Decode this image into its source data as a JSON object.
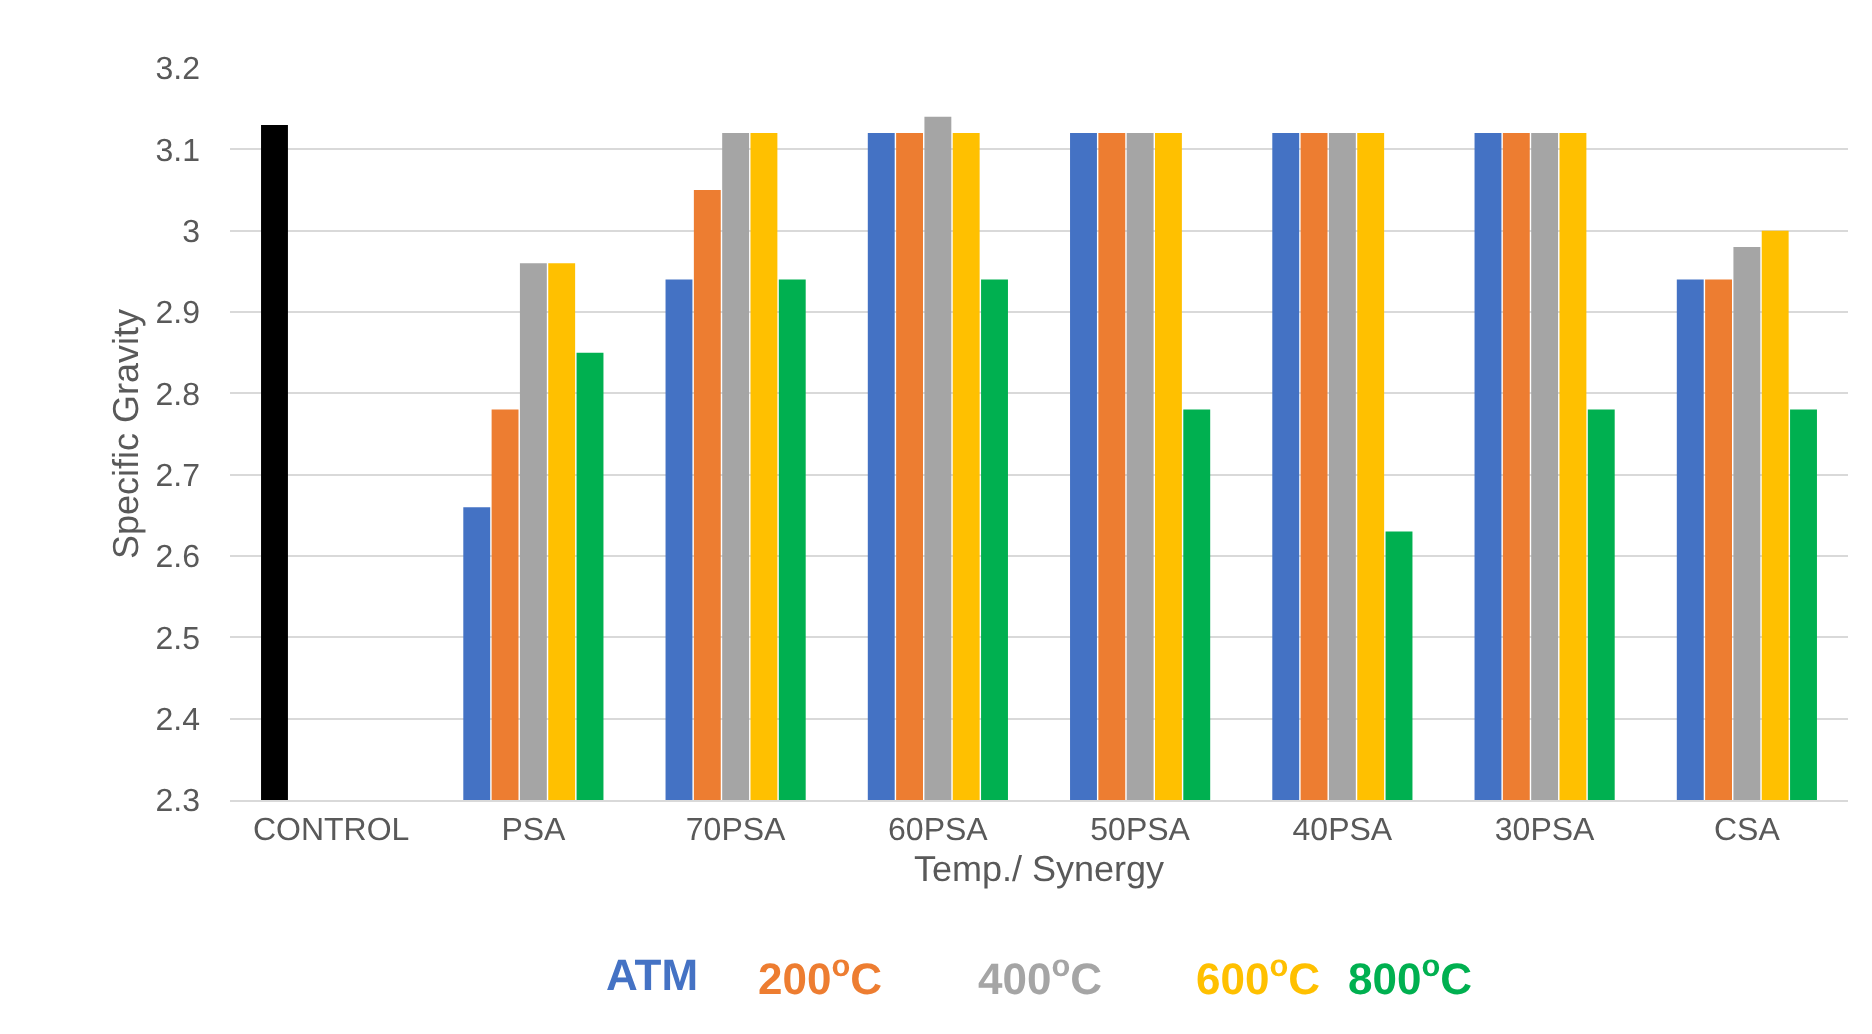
{
  "chart_data": {
    "type": "bar",
    "xlabel": "Temp./ Synergy",
    "ylabel": "Specific Gravity",
    "categories": [
      "CONTROL",
      "PSA",
      "70PSA",
      "60PSA",
      "50PSA",
      "40PSA",
      "30PSA",
      "CSA"
    ],
    "series": [
      {
        "name": "ATM",
        "color": "#4472c4",
        "colors": [
          "#000000",
          "#4472c4",
          "#4472c4",
          "#4472c4",
          "#4472c4",
          "#4472c4",
          "#4472c4",
          "#4472c4"
        ],
        "values": [
          3.13,
          2.66,
          2.94,
          3.12,
          3.12,
          3.12,
          3.12,
          2.94
        ]
      },
      {
        "name": "200$^{o}$C",
        "color": "#ed7d31",
        "values": [
          null,
          2.78,
          3.05,
          3.12,
          3.12,
          3.12,
          3.12,
          2.94
        ]
      },
      {
        "name": "400$^{o}$C",
        "color": "#a5a5a5",
        "values": [
          null,
          2.96,
          3.12,
          3.14,
          3.12,
          3.12,
          3.12,
          2.98
        ]
      },
      {
        "name": "600$^{o}$C",
        "color": "#ffc000",
        "values": [
          null,
          2.96,
          3.12,
          3.12,
          3.12,
          3.12,
          3.12,
          3.0
        ]
      },
      {
        "name": "800$^{o}$C",
        "color": "#00b050",
        "values": [
          null,
          2.85,
          2.94,
          2.94,
          2.78,
          2.63,
          2.78,
          2.78
        ]
      }
    ],
    "ylim": [
      2.3,
      3.2
    ],
    "yticks": [
      2.3,
      2.4,
      2.5,
      2.6,
      2.7,
      2.8,
      2.9,
      {
        "value": 3,
        "label": "3"
      },
      3.1,
      3.2
    ],
    "grid": "y",
    "legend": "bottom"
  }
}
